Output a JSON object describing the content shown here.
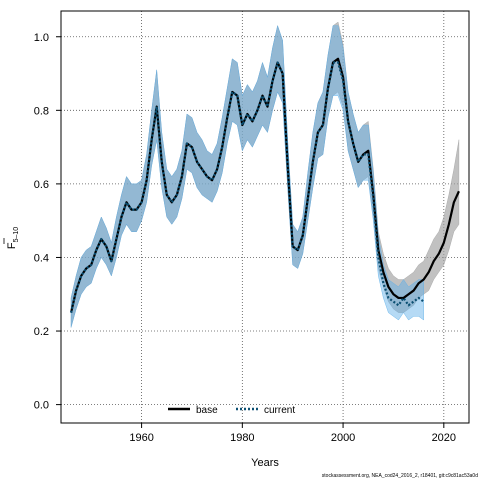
{
  "chart_data": {
    "type": "line",
    "title": "",
    "xlabel": "Years",
    "ylabel_main": "F",
    "ylabel_sub": "5–10",
    "xlim": [
      1944,
      2025
    ],
    "ylim": [
      -0.05,
      1.07
    ],
    "x_ticks": [
      1960,
      1980,
      2000,
      2020
    ],
    "y_ticks": [
      0.0,
      0.2,
      0.4,
      0.6,
      0.8,
      1.0
    ],
    "y_tick_labels": [
      "0.0",
      "0.2",
      "0.4",
      "0.6",
      "0.8",
      "1.0"
    ],
    "grid": true,
    "legend_position": "bottom-left",
    "footer": "stockassessment.org, NEA_cod24_2016_2, r18401, git:c9c81ac53a0d",
    "series": [
      {
        "name": "base",
        "color": "#000000",
        "band_color": "#a0a0a0",
        "x": [
          1946,
          1947,
          1948,
          1949,
          1950,
          1951,
          1952,
          1953,
          1954,
          1955,
          1956,
          1957,
          1958,
          1959,
          1960,
          1961,
          1962,
          1963,
          1964,
          1965,
          1966,
          1967,
          1968,
          1969,
          1970,
          1971,
          1972,
          1973,
          1974,
          1975,
          1976,
          1977,
          1978,
          1979,
          1980,
          1981,
          1982,
          1983,
          1984,
          1985,
          1986,
          1987,
          1988,
          1989,
          1990,
          1991,
          1992,
          1993,
          1994,
          1995,
          1996,
          1997,
          1998,
          1999,
          2000,
          2001,
          2002,
          2003,
          2004,
          2005,
          2006,
          2007,
          2008,
          2009,
          2010,
          2011,
          2012,
          2013,
          2014,
          2015,
          2016,
          2017,
          2018,
          2019,
          2020,
          2021,
          2022,
          2023
        ],
        "y": [
          0.25,
          0.31,
          0.35,
          0.37,
          0.38,
          0.42,
          0.45,
          0.43,
          0.39,
          0.45,
          0.51,
          0.55,
          0.53,
          0.53,
          0.55,
          0.61,
          0.72,
          0.81,
          0.66,
          0.57,
          0.55,
          0.57,
          0.62,
          0.71,
          0.7,
          0.66,
          0.64,
          0.62,
          0.61,
          0.64,
          0.7,
          0.78,
          0.85,
          0.84,
          0.76,
          0.79,
          0.77,
          0.8,
          0.84,
          0.81,
          0.88,
          0.93,
          0.9,
          0.65,
          0.43,
          0.42,
          0.46,
          0.56,
          0.66,
          0.74,
          0.76,
          0.86,
          0.93,
          0.94,
          0.89,
          0.77,
          0.71,
          0.66,
          0.68,
          0.69,
          0.57,
          0.42,
          0.36,
          0.32,
          0.3,
          0.29,
          0.29,
          0.3,
          0.31,
          0.33,
          0.34,
          0.36,
          0.39,
          0.41,
          0.44,
          0.49,
          0.55,
          0.58
        ],
        "lower": [
          0.21,
          0.26,
          0.3,
          0.32,
          0.33,
          0.37,
          0.4,
          0.38,
          0.35,
          0.4,
          0.46,
          0.49,
          0.47,
          0.47,
          0.5,
          0.55,
          0.65,
          0.72,
          0.59,
          0.51,
          0.49,
          0.51,
          0.56,
          0.64,
          0.63,
          0.59,
          0.57,
          0.56,
          0.55,
          0.58,
          0.63,
          0.71,
          0.77,
          0.76,
          0.69,
          0.72,
          0.7,
          0.73,
          0.76,
          0.74,
          0.8,
          0.85,
          0.82,
          0.59,
          0.38,
          0.37,
          0.41,
          0.5,
          0.59,
          0.67,
          0.68,
          0.78,
          0.84,
          0.85,
          0.81,
          0.69,
          0.64,
          0.59,
          0.61,
          0.62,
          0.51,
          0.37,
          0.32,
          0.28,
          0.26,
          0.25,
          0.25,
          0.26,
          0.27,
          0.29,
          0.3,
          0.31,
          0.34,
          0.36,
          0.38,
          0.42,
          0.47,
          0.49
        ],
        "upper": [
          0.29,
          0.35,
          0.4,
          0.42,
          0.43,
          0.47,
          0.51,
          0.48,
          0.44,
          0.51,
          0.57,
          0.62,
          0.6,
          0.6,
          0.61,
          0.68,
          0.8,
          0.91,
          0.74,
          0.64,
          0.62,
          0.64,
          0.69,
          0.79,
          0.78,
          0.74,
          0.72,
          0.69,
          0.68,
          0.71,
          0.78,
          0.86,
          0.94,
          0.93,
          0.84,
          0.87,
          0.85,
          0.88,
          0.93,
          0.89,
          0.97,
          1.03,
          0.99,
          0.72,
          0.49,
          0.47,
          0.51,
          0.63,
          0.74,
          0.82,
          0.85,
          0.95,
          1.03,
          1.04,
          0.98,
          0.85,
          0.79,
          0.74,
          0.76,
          0.77,
          0.64,
          0.47,
          0.41,
          0.37,
          0.35,
          0.34,
          0.34,
          0.35,
          0.36,
          0.38,
          0.39,
          0.42,
          0.45,
          0.47,
          0.51,
          0.57,
          0.64,
          0.72
        ]
      },
      {
        "name": "current",
        "color": "#0b4f72",
        "band_color": "#5aaee8",
        "x": [
          1946,
          1947,
          1948,
          1949,
          1950,
          1951,
          1952,
          1953,
          1954,
          1955,
          1956,
          1957,
          1958,
          1959,
          1960,
          1961,
          1962,
          1963,
          1964,
          1965,
          1966,
          1967,
          1968,
          1969,
          1970,
          1971,
          1972,
          1973,
          1974,
          1975,
          1976,
          1977,
          1978,
          1979,
          1980,
          1981,
          1982,
          1983,
          1984,
          1985,
          1986,
          1987,
          1988,
          1989,
          1990,
          1991,
          1992,
          1993,
          1994,
          1995,
          1996,
          1997,
          1998,
          1999,
          2000,
          2001,
          2002,
          2003,
          2004,
          2005,
          2006,
          2007,
          2008,
          2009,
          2010,
          2011,
          2012,
          2013,
          2014,
          2015,
          2016
        ],
        "y": [
          0.25,
          0.31,
          0.35,
          0.37,
          0.38,
          0.42,
          0.45,
          0.43,
          0.39,
          0.45,
          0.51,
          0.55,
          0.53,
          0.53,
          0.55,
          0.61,
          0.72,
          0.81,
          0.66,
          0.57,
          0.55,
          0.57,
          0.62,
          0.71,
          0.7,
          0.66,
          0.64,
          0.62,
          0.61,
          0.64,
          0.7,
          0.78,
          0.85,
          0.84,
          0.76,
          0.79,
          0.77,
          0.8,
          0.84,
          0.81,
          0.88,
          0.93,
          0.9,
          0.65,
          0.43,
          0.42,
          0.46,
          0.56,
          0.66,
          0.74,
          0.76,
          0.86,
          0.93,
          0.93,
          0.88,
          0.77,
          0.71,
          0.66,
          0.68,
          0.68,
          0.56,
          0.4,
          0.33,
          0.29,
          0.28,
          0.27,
          0.29,
          0.27,
          0.28,
          0.29,
          0.28
        ],
        "lower": [
          0.21,
          0.26,
          0.3,
          0.32,
          0.33,
          0.37,
          0.4,
          0.38,
          0.35,
          0.4,
          0.46,
          0.49,
          0.47,
          0.47,
          0.5,
          0.55,
          0.65,
          0.72,
          0.59,
          0.51,
          0.49,
          0.51,
          0.56,
          0.64,
          0.63,
          0.59,
          0.57,
          0.56,
          0.55,
          0.58,
          0.63,
          0.71,
          0.77,
          0.76,
          0.69,
          0.72,
          0.7,
          0.73,
          0.76,
          0.74,
          0.8,
          0.85,
          0.82,
          0.59,
          0.38,
          0.37,
          0.41,
          0.5,
          0.59,
          0.67,
          0.68,
          0.78,
          0.84,
          0.84,
          0.8,
          0.69,
          0.64,
          0.59,
          0.61,
          0.61,
          0.5,
          0.35,
          0.29,
          0.25,
          0.24,
          0.23,
          0.25,
          0.23,
          0.24,
          0.24,
          0.23
        ],
        "upper": [
          0.29,
          0.35,
          0.4,
          0.42,
          0.43,
          0.47,
          0.51,
          0.48,
          0.44,
          0.51,
          0.57,
          0.62,
          0.6,
          0.6,
          0.61,
          0.68,
          0.8,
          0.91,
          0.74,
          0.64,
          0.62,
          0.64,
          0.69,
          0.79,
          0.78,
          0.74,
          0.72,
          0.69,
          0.68,
          0.71,
          0.78,
          0.86,
          0.94,
          0.93,
          0.84,
          0.87,
          0.85,
          0.88,
          0.93,
          0.89,
          0.97,
          1.03,
          0.99,
          0.72,
          0.49,
          0.47,
          0.51,
          0.63,
          0.74,
          0.82,
          0.85,
          0.95,
          1.03,
          1.03,
          0.97,
          0.85,
          0.79,
          0.74,
          0.76,
          0.76,
          0.63,
          0.46,
          0.38,
          0.34,
          0.33,
          0.32,
          0.34,
          0.32,
          0.33,
          0.34,
          0.34
        ]
      }
    ]
  }
}
